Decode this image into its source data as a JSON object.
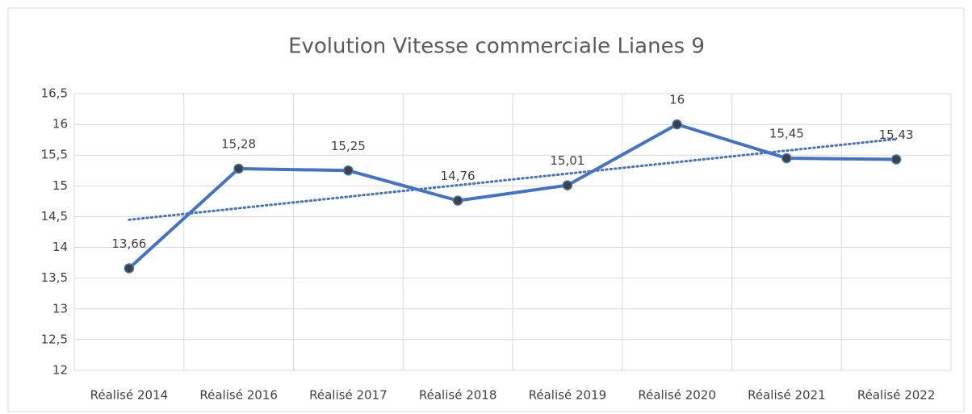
{
  "chart_data": {
    "type": "line",
    "title": "Evolution Vitesse commerciale Lianes 9",
    "categories": [
      "Réalisé 2014",
      "Réalisé 2016",
      "Réalisé 2017",
      "Réalisé 2018",
      "Réalisé 2019",
      "Réalisé 2020",
      "Réalisé 2021",
      "Réalisé 2022"
    ],
    "values": [
      13.66,
      15.28,
      15.25,
      14.76,
      15.01,
      16,
      15.45,
      15.43
    ],
    "value_labels": [
      "13,66",
      "15,28",
      "15,25",
      "14,76",
      "15,01",
      "16",
      "15,45",
      "15,43"
    ],
    "color": "#4472c4",
    "trendline": "linear",
    "ylim": [
      12,
      16.5
    ],
    "yticks": [
      12,
      {
        "value": 12.5,
        "label": "12,5"
      },
      13,
      {
        "value": 13.5,
        "label": "13,5"
      },
      14,
      {
        "value": 14.5,
        "label": "14,5"
      },
      15,
      {
        "value": 15.5,
        "label": "15,5"
      },
      16,
      {
        "value": 16.5,
        "label": "16,5"
      }
    ],
    "grid": true
  }
}
